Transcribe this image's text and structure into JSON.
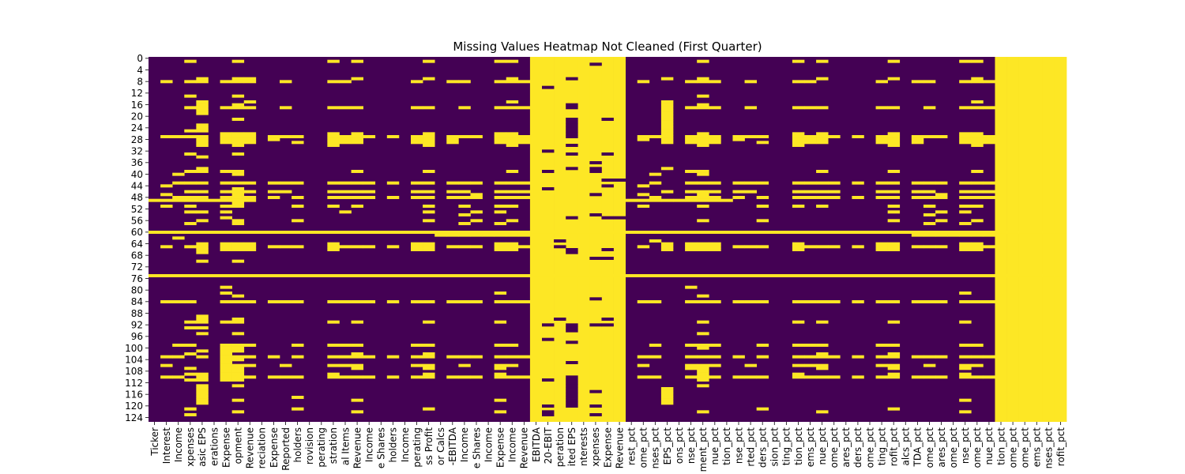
{
  "chart_data": {
    "type": "heatmap",
    "title": "Missing Values Heatmap Not Cleaned (First Quarter)",
    "xlabel": "",
    "ylabel": "",
    "colorbar": false,
    "colors": {
      "missing": "#fde725",
      "present": "#440154"
    },
    "rows": 126,
    "y_ticks": [
      0,
      4,
      8,
      12,
      16,
      20,
      24,
      28,
      32,
      36,
      40,
      44,
      48,
      52,
      56,
      60,
      64,
      68,
      72,
      76,
      80,
      84,
      88,
      92,
      96,
      100,
      104,
      108,
      112,
      116,
      120,
      124
    ],
    "x_tick_labels": [
      "Ticker",
      "Interest",
      "Income",
      "xpenses",
      "asic EPS",
      "erations",
      "Expense",
      "opment",
      "Revenue",
      "reciation",
      "Expense",
      "Reported",
      "holders",
      "rovision",
      "perating",
      "stration",
      "al Items",
      "Revenue",
      "Income",
      "e Shares",
      "holders",
      "Income",
      "perating",
      "ss Profit",
      "or Calcs",
      "-EBITDA",
      "Income",
      "e Shares",
      "Income",
      "Expense",
      "Income",
      "Revenue",
      "EBITDA",
      "20-EBIT",
      "peration",
      "ited EPS",
      "nterests",
      "xpenses",
      "Expense",
      "Revenue",
      "rest_pct",
      "ome_pct",
      "nses_pct",
      "EPS_pct",
      "ons_pct",
      "nse_pct",
      "ment_pct",
      "nue_pct",
      "tion_pct",
      "nse_pct",
      "rted_pct",
      "ders_pct",
      "sion_pct",
      "ting_pct",
      "tion_pct",
      "ems_pct",
      "nue_pct",
      "ome_pct",
      "ares_pct",
      "ders_pct",
      "ome_pct",
      "ting_pct",
      "rofit_pct",
      "alcs_pct",
      "TDA_pct",
      "ome_pct",
      "ares_pct",
      "ome_pct",
      "nse_pct",
      "ome_pct",
      "nue_pct",
      "tion_pct",
      "ome_pct",
      "ome_pct",
      "ems_pct",
      "nses_pct",
      "rofit_pct"
    ],
    "fully_missing_columns": [
      32,
      33,
      34,
      35,
      36,
      37,
      38,
      39,
      71,
      72,
      73,
      74,
      75,
      76
    ],
    "fully_missing_rows": [
      60,
      75
    ],
    "partially_missing_rows": [
      {
        "row": 49,
        "columns": [
          0,
          1,
          2,
          3,
          4,
          5,
          6,
          7,
          8,
          40,
          41,
          42,
          43,
          44,
          45,
          46,
          47,
          48
        ]
      },
      {
        "row": 61,
        "columns": [
          24,
          25,
          26,
          27,
          28,
          29,
          30,
          31,
          64,
          65,
          66,
          67,
          68,
          69,
          70
        ]
      }
    ],
    "scattered_missing_columns": [
      {
        "column": 1,
        "rows": [
          8,
          27,
          44,
          47,
          51,
          65,
          84,
          103,
          106,
          110
        ]
      },
      {
        "column": 2,
        "rows": [
          27,
          40,
          43,
          48,
          62,
          84,
          99,
          103,
          110
        ]
      },
      {
        "column": 3,
        "rows": [
          1,
          8,
          13,
          17,
          25,
          27,
          33,
          39,
          43,
          46,
          48,
          51,
          53,
          57,
          65,
          84,
          91,
          93,
          99,
          102,
          107,
          109,
          111,
          121,
          123
        ]
      },
      {
        "column": 4,
        "rows": [
          7,
          8,
          15,
          16,
          17,
          18,
          19,
          23,
          24,
          25,
          27,
          28,
          29,
          30,
          34,
          38,
          39,
          43,
          46,
          48,
          53,
          56,
          64,
          65,
          66,
          67,
          70,
          89,
          90,
          91,
          93,
          95,
          101,
          103,
          109,
          110,
          111,
          113,
          114,
          115,
          116,
          117,
          118,
          119
        ]
      },
      {
        "column": 6,
        "rows": [
          8,
          17,
          26,
          27,
          28,
          29,
          39,
          43,
          46,
          48,
          51,
          53,
          55,
          64,
          65,
          66,
          79,
          81,
          84,
          91,
          99,
          100,
          101,
          102,
          103,
          104,
          105,
          106,
          107,
          108,
          109,
          110,
          111
        ]
      },
      {
        "column": 7,
        "rows": [
          1,
          7,
          8,
          13,
          16,
          17,
          21,
          26,
          27,
          28,
          29,
          30,
          33,
          39,
          40,
          43,
          45,
          46,
          47,
          48,
          50,
          51,
          56,
          57,
          64,
          65,
          66,
          70,
          82,
          84,
          90,
          91,
          95,
          99,
          100,
          101,
          103,
          104,
          106,
          107,
          108,
          109,
          110,
          111,
          113,
          118,
          122
        ]
      },
      {
        "column": 8,
        "rows": [
          7,
          8,
          15,
          17,
          26,
          27,
          28,
          29,
          43,
          46,
          48,
          64,
          65,
          66,
          84,
          99,
          103,
          106,
          110
        ]
      },
      {
        "column": 10,
        "rows": [
          27,
          28,
          43,
          46,
          48,
          65,
          84,
          103,
          110
        ]
      },
      {
        "column": 11,
        "rows": [
          8,
          17,
          27,
          43,
          46,
          65,
          84,
          106,
          110
        ]
      },
      {
        "column": 12,
        "rows": [
          27,
          29,
          43,
          48,
          51,
          56,
          65,
          84,
          99,
          103,
          110,
          117,
          121
        ]
      },
      {
        "column": 15,
        "rows": [
          1,
          8,
          17,
          26,
          27,
          28,
          29,
          30,
          43,
          46,
          48,
          51,
          64,
          65,
          66,
          84,
          91,
          99,
          103,
          106,
          109,
          110
        ]
      },
      {
        "column": 16,
        "rows": [
          8,
          17,
          27,
          28,
          29,
          43,
          46,
          48,
          53,
          65,
          84,
          99,
          103,
          106,
          110
        ]
      },
      {
        "column": 17,
        "rows": [
          1,
          7,
          17,
          26,
          27,
          28,
          29,
          39,
          43,
          46,
          48,
          51,
          65,
          84,
          91,
          99,
          102,
          103,
          106,
          107,
          110,
          118,
          122
        ]
      },
      {
        "column": 18,
        "rows": [
          27,
          43,
          46,
          48,
          65,
          84,
          103,
          110
        ]
      },
      {
        "column": 20,
        "rows": [
          27,
          43,
          48,
          65,
          84,
          103,
          110
        ]
      },
      {
        "column": 22,
        "rows": [
          8,
          17,
          27,
          28,
          29,
          43,
          46,
          48,
          64,
          65,
          66,
          84,
          99,
          103,
          106,
          110
        ]
      },
      {
        "column": 23,
        "rows": [
          1,
          7,
          17,
          26,
          27,
          28,
          29,
          30,
          39,
          43,
          46,
          48,
          51,
          53,
          56,
          64,
          65,
          66,
          84,
          91,
          99,
          102,
          103,
          106,
          107,
          109,
          110,
          121
        ]
      },
      {
        "column": 25,
        "rows": [
          8,
          27,
          28,
          29,
          43,
          46,
          48,
          65,
          84,
          103,
          110
        ]
      },
      {
        "column": 26,
        "rows": [
          8,
          17,
          27,
          43,
          46,
          48,
          51,
          54,
          57,
          65,
          84,
          103,
          106,
          110
        ]
      },
      {
        "column": 27,
        "rows": [
          27,
          43,
          47,
          48,
          53,
          56,
          65,
          84,
          103,
          110
        ]
      },
      {
        "column": 29,
        "rows": [
          1,
          8,
          17,
          26,
          27,
          28,
          29,
          43,
          46,
          48,
          51,
          53,
          57,
          64,
          65,
          66,
          81,
          84,
          91,
          99,
          103,
          106,
          107,
          109,
          110,
          118,
          122
        ]
      },
      {
        "column": 30,
        "rows": [
          1,
          7,
          8,
          15,
          17,
          26,
          27,
          28,
          29,
          30,
          39,
          43,
          46,
          48,
          51,
          56,
          64,
          65,
          66,
          84,
          99,
          103,
          106,
          110
        ]
      },
      {
        "column": 31,
        "rows": [
          8,
          17,
          27,
          28,
          29,
          43,
          46,
          48,
          65,
          84,
          103,
          110
        ]
      },
      {
        "column": 33,
        "rows": [
          10,
          32,
          39,
          45,
          92,
          97,
          111,
          120,
          122,
          123
        ]
      },
      {
        "column": 34,
        "rows": [
          63,
          65,
          90
        ]
      },
      {
        "column": 35,
        "rows": [
          7,
          16,
          17,
          21,
          22,
          23,
          24,
          25,
          26,
          27,
          30,
          33,
          38,
          55,
          66,
          67,
          92,
          93,
          94,
          98,
          105,
          110,
          111,
          112,
          113,
          114,
          115,
          116,
          117,
          118,
          119,
          120
        ]
      },
      {
        "column": 37,
        "rows": [
          2,
          36,
          38,
          39,
          47,
          54,
          69,
          83,
          92,
          115,
          120,
          123
        ]
      },
      {
        "column": 38,
        "rows": [
          21,
          33,
          42,
          44,
          55,
          66,
          69,
          90,
          92
        ]
      },
      {
        "column": 39,
        "rows": [
          42,
          55
        ]
      },
      {
        "column": 41,
        "rows": [
          8,
          27,
          28,
          44,
          47,
          51,
          65,
          84,
          103,
          106,
          110
        ]
      },
      {
        "column": 42,
        "rows": [
          27,
          40,
          43,
          48,
          63,
          84,
          99,
          103,
          110
        ]
      },
      {
        "column": 43,
        "rows": [
          7,
          15,
          16,
          17,
          18,
          19,
          20,
          21,
          22,
          23,
          24,
          25,
          26,
          27,
          28,
          29,
          38,
          46,
          64,
          65,
          66,
          114,
          115,
          116,
          117,
          118,
          119
        ]
      },
      {
        "column": 45,
        "rows": [
          8,
          17,
          27,
          28,
          29,
          39,
          43,
          46,
          48,
          64,
          65,
          66,
          79,
          84,
          99,
          103,
          106,
          107,
          110
        ]
      },
      {
        "column": 46,
        "rows": [
          1,
          7,
          8,
          13,
          16,
          17,
          26,
          27,
          28,
          29,
          30,
          39,
          40,
          43,
          46,
          47,
          48,
          51,
          56,
          64,
          65,
          66,
          82,
          84,
          91,
          95,
          99,
          100,
          103,
          106,
          107,
          108,
          109,
          110,
          111,
          113,
          122
        ]
      },
      {
        "column": 47,
        "rows": [
          8,
          17,
          27,
          28,
          29,
          43,
          46,
          48,
          64,
          65,
          66,
          84,
          99,
          103,
          106,
          110
        ]
      },
      {
        "column": 49,
        "rows": [
          27,
          28,
          43,
          46,
          48,
          65,
          84,
          103,
          110
        ]
      },
      {
        "column": 50,
        "rows": [
          8,
          17,
          27,
          43,
          46,
          65,
          84,
          106,
          110
        ]
      },
      {
        "column": 51,
        "rows": [
          27,
          29,
          43,
          48,
          51,
          56,
          65,
          84,
          99,
          103,
          110,
          121
        ]
      },
      {
        "column": 54,
        "rows": [
          1,
          8,
          17,
          26,
          27,
          28,
          29,
          30,
          43,
          46,
          48,
          51,
          64,
          65,
          66,
          84,
          91,
          99,
          103,
          106,
          109,
          110
        ]
      },
      {
        "column": 55,
        "rows": [
          8,
          17,
          27,
          28,
          29,
          43,
          46,
          48,
          65,
          84,
          99,
          103,
          106,
          110
        ]
      },
      {
        "column": 56,
        "rows": [
          1,
          7,
          17,
          26,
          27,
          28,
          29,
          39,
          43,
          46,
          48,
          51,
          65,
          84,
          91,
          99,
          102,
          103,
          106,
          107,
          110,
          122
        ]
      },
      {
        "column": 57,
        "rows": [
          27,
          43,
          46,
          48,
          65,
          84,
          103,
          110
        ]
      },
      {
        "column": 59,
        "rows": [
          27,
          43,
          48,
          65,
          84,
          103,
          110
        ]
      },
      {
        "column": 61,
        "rows": [
          8,
          17,
          27,
          28,
          29,
          43,
          46,
          48,
          64,
          65,
          66,
          84,
          99,
          103,
          106,
          110
        ]
      },
      {
        "column": 62,
        "rows": [
          1,
          7,
          17,
          26,
          27,
          28,
          29,
          30,
          39,
          43,
          46,
          48,
          51,
          53,
          56,
          64,
          65,
          66,
          84,
          91,
          99,
          102,
          103,
          106,
          107,
          109,
          110,
          121
        ]
      },
      {
        "column": 64,
        "rows": [
          8,
          27,
          28,
          29,
          43,
          46,
          48,
          65,
          84,
          103,
          110
        ]
      },
      {
        "column": 65,
        "rows": [
          8,
          17,
          27,
          43,
          46,
          48,
          51,
          54,
          57,
          65,
          84,
          103,
          106,
          110
        ]
      },
      {
        "column": 66,
        "rows": [
          27,
          43,
          47,
          48,
          53,
          56,
          65,
          84,
          103,
          110
        ]
      },
      {
        "column": 68,
        "rows": [
          1,
          8,
          17,
          26,
          27,
          28,
          29,
          43,
          46,
          48,
          51,
          53,
          57,
          64,
          65,
          66,
          81,
          84,
          91,
          99,
          103,
          106,
          107,
          109,
          110,
          118,
          122
        ]
      },
      {
        "column": 69,
        "rows": [
          1,
          7,
          8,
          15,
          17,
          26,
          27,
          28,
          29,
          30,
          39,
          43,
          46,
          48,
          51,
          56,
          64,
          65,
          66,
          84,
          99,
          103,
          106,
          110
        ]
      },
      {
        "column": 70,
        "rows": [
          8,
          17,
          27,
          28,
          29,
          43,
          46,
          48,
          65,
          84,
          103,
          110
        ]
      }
    ]
  }
}
